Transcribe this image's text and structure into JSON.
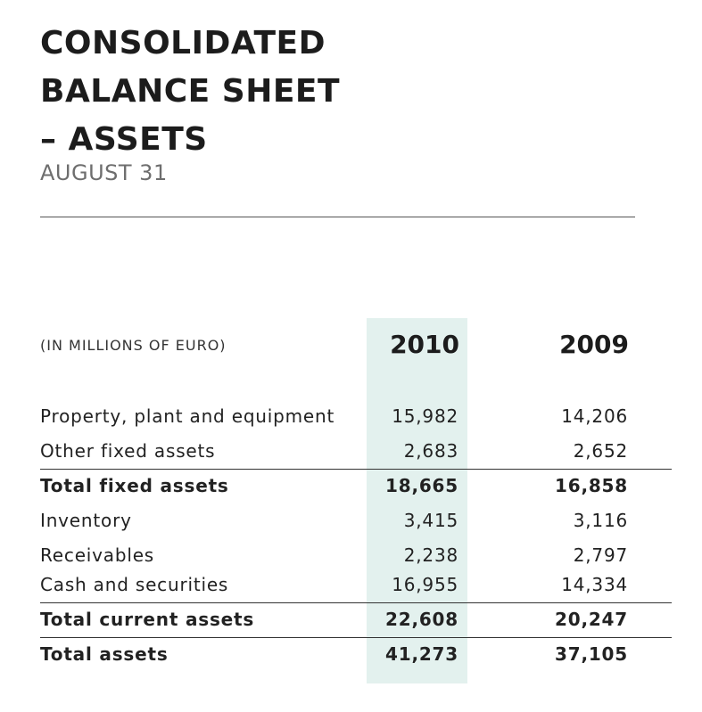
{
  "header": {
    "title_lines": [
      "CONSOLIDATED",
      "BALANCE SHEET",
      "– ASSETS"
    ],
    "subtitle": "AUGUST 31"
  },
  "table": {
    "units_label": "(IN MILLIONS OF EURO)",
    "columns": [
      "2010",
      "2009"
    ],
    "highlight_column": "2010",
    "highlight_color": "#e3f1ee",
    "rows": [
      {
        "label": "Property, plant and equipment",
        "values": [
          "15,982",
          "14,206"
        ],
        "bold": false
      },
      {
        "label": "Other fixed assets",
        "values": [
          "2,683",
          "2,652"
        ],
        "bold": false
      },
      {
        "label": "Total fixed assets",
        "values": [
          "18,665",
          "16,858"
        ],
        "bold": true
      },
      {
        "label": "Inventory",
        "values": [
          "3,415",
          "3,116"
        ],
        "bold": false
      },
      {
        "label": "Receivables",
        "values": [
          "2,238",
          "2,797"
        ],
        "bold": false
      },
      {
        "label": "Cash and securities",
        "values": [
          "16,955",
          "14,334"
        ],
        "bold": false
      },
      {
        "label": "Total current assets",
        "values": [
          "22,608",
          "20,247"
        ],
        "bold": true
      },
      {
        "label": "Total assets",
        "values": [
          "41,273",
          "37,105"
        ],
        "bold": true
      }
    ]
  }
}
